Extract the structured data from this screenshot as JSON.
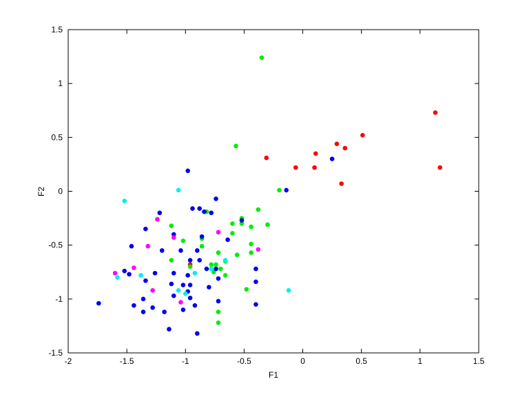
{
  "chart_data": {
    "type": "scatter",
    "title": "",
    "xlabel": "F1",
    "ylabel": "F2",
    "xlim": [
      -2,
      1.5
    ],
    "ylim": [
      -1.5,
      1.5
    ],
    "xticks": [
      "-2",
      "-1.5",
      "-1",
      "-0.5",
      "0",
      "0.5",
      "1",
      "1.5"
    ],
    "yticks": [
      "-1.5",
      "-1",
      "-0.5",
      "0",
      "0.5",
      "1",
      "1.5"
    ],
    "xtick_values": [
      -2,
      -1.5,
      -1,
      -0.5,
      0,
      0.5,
      1,
      1.5
    ],
    "ytick_values": [
      -1.5,
      -1,
      -0.5,
      0,
      0.5,
      1,
      1.5
    ],
    "grid": false,
    "series": [
      {
        "color": "#ff0000",
        "points": [
          [
            1.13,
            0.73
          ],
          [
            1.17,
            0.22
          ],
          [
            0.51,
            0.52
          ],
          [
            0.29,
            0.44
          ],
          [
            0.36,
            0.4
          ],
          [
            0.11,
            0.35
          ],
          [
            0.1,
            0.22
          ],
          [
            -0.06,
            0.22
          ],
          [
            -0.31,
            0.31
          ],
          [
            0.33,
            0.07
          ],
          [
            -0.96,
            -0.68
          ]
        ]
      },
      {
        "color": "#00ee00",
        "points": [
          [
            -0.35,
            1.24
          ],
          [
            -0.57,
            0.42
          ],
          [
            -0.2,
            0.01
          ],
          [
            -0.52,
            -0.25
          ],
          [
            -0.6,
            -0.3
          ],
          [
            -0.52,
            -0.3
          ],
          [
            -0.44,
            -0.33
          ],
          [
            -0.38,
            -0.17
          ],
          [
            -0.3,
            -0.31
          ],
          [
            -0.6,
            -0.39
          ],
          [
            -0.86,
            -0.44
          ],
          [
            -0.86,
            -0.51
          ],
          [
            -0.44,
            -0.49
          ],
          [
            -0.56,
            -0.59
          ],
          [
            -0.44,
            -0.57
          ],
          [
            -0.72,
            -0.57
          ],
          [
            -0.74,
            -0.68
          ],
          [
            -0.66,
            -0.65
          ],
          [
            -0.78,
            -0.68
          ],
          [
            -0.7,
            -0.72
          ],
          [
            -0.76,
            -0.75
          ],
          [
            -0.66,
            -0.78
          ],
          [
            -0.48,
            -0.91
          ],
          [
            -0.72,
            -1.12
          ],
          [
            -0.72,
            -1.22
          ],
          [
            -1.02,
            -0.46
          ],
          [
            -1.12,
            -0.32
          ],
          [
            -1.12,
            -0.64
          ],
          [
            -0.96,
            -0.7
          ],
          [
            -0.82,
            -0.19
          ]
        ]
      },
      {
        "color": "#0000ee",
        "points": [
          [
            -0.98,
            0.19
          ],
          [
            -0.94,
            -0.16
          ],
          [
            -0.88,
            -0.16
          ],
          [
            -0.84,
            -0.19
          ],
          [
            -0.78,
            -0.2
          ],
          [
            -0.74,
            -0.07
          ],
          [
            -0.52,
            -0.27
          ],
          [
            -0.64,
            -0.45
          ],
          [
            -0.86,
            -0.42
          ],
          [
            -0.9,
            -0.55
          ],
          [
            -0.14,
            0.01
          ],
          [
            0.25,
            0.3
          ],
          [
            -1.22,
            -0.2
          ],
          [
            -1.34,
            -0.35
          ],
          [
            -1.1,
            -0.4
          ],
          [
            -1.2,
            -0.55
          ],
          [
            -1.46,
            -0.51
          ],
          [
            -1.04,
            -0.55
          ],
          [
            -0.96,
            -0.64
          ],
          [
            -0.88,
            -0.64
          ],
          [
            -0.82,
            -0.72
          ],
          [
            -0.74,
            -0.72
          ],
          [
            -1.48,
            -0.77
          ],
          [
            -1.52,
            -0.74
          ],
          [
            -1.34,
            -0.83
          ],
          [
            -1.26,
            -0.76
          ],
          [
            -1.1,
            -0.76
          ],
          [
            -0.98,
            -0.78
          ],
          [
            -0.96,
            -0.87
          ],
          [
            -1.12,
            -0.86
          ],
          [
            -1.02,
            -0.87
          ],
          [
            -0.8,
            -0.89
          ],
          [
            -0.72,
            -0.81
          ],
          [
            -0.4,
            -0.72
          ],
          [
            -0.4,
            -0.84
          ],
          [
            -1.36,
            -1.0
          ],
          [
            -1.28,
            -1.08
          ],
          [
            -1.1,
            -0.97
          ],
          [
            -0.98,
            -0.93
          ],
          [
            -0.96,
            -0.99
          ],
          [
            -1.02,
            -1.1
          ],
          [
            -0.92,
            -1.06
          ],
          [
            -0.72,
            -1.02
          ],
          [
            -0.4,
            -1.05
          ],
          [
            -1.44,
            -1.06
          ],
          [
            -1.36,
            -1.12
          ],
          [
            -1.18,
            -1.12
          ],
          [
            -1.74,
            -1.04
          ],
          [
            -1.14,
            -1.28
          ],
          [
            -0.9,
            -1.32
          ]
        ]
      },
      {
        "color": "#00eeee",
        "points": [
          [
            -1.06,
            0.01
          ],
          [
            -1.52,
            -0.09
          ],
          [
            -0.66,
            -0.64
          ],
          [
            -0.78,
            -0.72
          ],
          [
            -0.92,
            -0.76
          ],
          [
            -1.38,
            -0.78
          ],
          [
            -1.58,
            -0.8
          ],
          [
            -1.06,
            -0.92
          ],
          [
            -1.0,
            -0.95
          ],
          [
            -0.12,
            -0.92
          ]
        ]
      },
      {
        "color": "#ff00ff",
        "points": [
          [
            -1.24,
            -0.26
          ],
          [
            -1.1,
            -0.43
          ],
          [
            -1.32,
            -0.51
          ],
          [
            -0.72,
            -0.38
          ],
          [
            -0.38,
            -0.54
          ],
          [
            -1.44,
            -0.71
          ],
          [
            -1.6,
            -0.76
          ],
          [
            -1.28,
            -0.92
          ],
          [
            -1.04,
            -1.03
          ]
        ]
      }
    ]
  }
}
